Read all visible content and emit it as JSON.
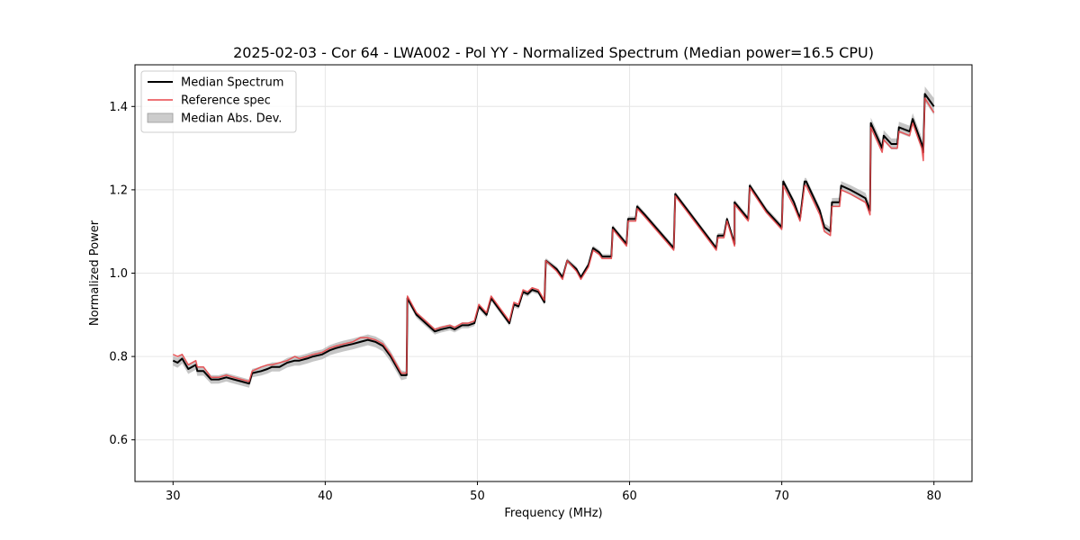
{
  "chart_data": {
    "type": "line",
    "title": "2025-02-03 - Cor 64 - LWA002 - Pol YY - Normalized Spectrum (Median power=16.5 CPU)",
    "xlabel": "Frequency (MHz)",
    "ylabel": "Normalized Power",
    "xlim": [
      27.5,
      82.5
    ],
    "ylim": [
      0.5,
      1.5
    ],
    "xticks": [
      30,
      40,
      50,
      60,
      70,
      80
    ],
    "xtick_labels": [
      "30",
      "40",
      "50",
      "60",
      "70",
      "80"
    ],
    "yticks": [
      0.6,
      0.8,
      1.0,
      1.2,
      1.4
    ],
    "ytick_labels": [
      "0.6",
      "0.8",
      "1.0",
      "1.2",
      "1.4"
    ],
    "grid": true,
    "legend_position": "top-left",
    "legend": [
      "Median Spectrum",
      "Reference spec",
      "Median Abs. Dev."
    ],
    "colors": {
      "median": "#000000",
      "reference": "#e8474a",
      "mad": "#b3b3b3"
    },
    "series": [
      {
        "name": "Median Spectrum",
        "x": [
          30.0,
          30.3,
          30.6,
          31.0,
          31.5,
          31.6,
          32.0,
          32.5,
          33.0,
          33.5,
          34.0,
          34.5,
          35.0,
          35.2,
          35.8,
          36.2,
          36.5,
          37.0,
          37.5,
          38.0,
          38.3,
          38.8,
          39.2,
          39.8,
          40.3,
          40.7,
          41.2,
          41.8,
          42.3,
          42.8,
          43.3,
          43.8,
          44.3,
          45.0,
          45.35,
          45.4,
          46.0,
          46.6,
          47.2,
          47.6,
          48.2,
          48.5,
          49.0,
          49.4,
          49.8,
          50.1,
          50.6,
          50.9,
          51.3,
          51.7,
          52.1,
          52.4,
          52.7,
          53.0,
          53.3,
          53.6,
          54.0,
          54.4,
          54.5,
          55.2,
          55.6,
          55.9,
          56.5,
          56.8,
          57.3,
          57.6,
          58.0,
          58.2,
          58.8,
          58.9,
          59.8,
          59.9,
          60.4,
          60.5,
          61.0,
          62.9,
          63.0,
          65.7,
          65.8,
          66.2,
          66.4,
          66.9,
          66.9,
          67.8,
          67.9,
          69.0,
          69.5,
          70.0,
          70.1,
          70.8,
          71.2,
          71.5,
          71.6,
          72.5,
          72.8,
          73.2,
          73.3,
          73.8,
          73.9,
          74.5,
          75.0,
          75.5,
          75.8,
          75.85,
          76.6,
          76.7,
          77.2,
          77.6,
          77.7,
          78.4,
          78.6,
          79.2,
          79.3,
          79.4,
          80.0
        ],
        "values": [
          0.79,
          0.785,
          0.795,
          0.77,
          0.78,
          0.765,
          0.765,
          0.745,
          0.745,
          0.75,
          0.745,
          0.74,
          0.735,
          0.76,
          0.765,
          0.77,
          0.775,
          0.775,
          0.785,
          0.79,
          0.79,
          0.795,
          0.8,
          0.805,
          0.815,
          0.82,
          0.825,
          0.83,
          0.835,
          0.84,
          0.835,
          0.825,
          0.8,
          0.755,
          0.755,
          0.94,
          0.9,
          0.88,
          0.86,
          0.865,
          0.87,
          0.865,
          0.875,
          0.875,
          0.88,
          0.92,
          0.9,
          0.94,
          0.92,
          0.9,
          0.88,
          0.925,
          0.92,
          0.955,
          0.95,
          0.96,
          0.955,
          0.93,
          1.03,
          1.01,
          0.99,
          1.03,
          1.01,
          0.99,
          1.02,
          1.06,
          1.05,
          1.04,
          1.04,
          1.11,
          1.07,
          1.13,
          1.13,
          1.16,
          1.14,
          1.06,
          1.19,
          1.06,
          1.09,
          1.09,
          1.13,
          1.07,
          1.17,
          1.13,
          1.21,
          1.15,
          1.13,
          1.11,
          1.22,
          1.17,
          1.13,
          1.22,
          1.22,
          1.15,
          1.11,
          1.1,
          1.17,
          1.17,
          1.21,
          1.2,
          1.19,
          1.18,
          1.15,
          1.36,
          1.3,
          1.33,
          1.31,
          1.31,
          1.35,
          1.34,
          1.37,
          1.31,
          1.29,
          1.43,
          1.4
        ]
      },
      {
        "name": "Reference spec",
        "x": [
          30.0,
          30.3,
          30.6,
          31.0,
          31.5,
          31.6,
          32.0,
          32.5,
          33.0,
          33.5,
          34.0,
          34.5,
          35.0,
          35.2,
          35.8,
          36.2,
          36.5,
          37.0,
          37.5,
          38.0,
          38.3,
          38.8,
          39.2,
          39.8,
          40.3,
          40.7,
          41.2,
          41.8,
          42.3,
          42.8,
          43.3,
          43.8,
          44.3,
          45.0,
          45.35,
          45.4,
          46.0,
          46.6,
          47.2,
          47.6,
          48.2,
          48.5,
          49.0,
          49.4,
          49.8,
          50.1,
          50.6,
          50.9,
          51.3,
          51.7,
          52.1,
          52.4,
          52.7,
          53.0,
          53.3,
          53.6,
          54.0,
          54.4,
          54.5,
          55.2,
          55.6,
          55.9,
          56.5,
          56.8,
          57.3,
          57.6,
          58.0,
          58.2,
          58.8,
          58.9,
          59.8,
          59.9,
          60.4,
          60.5,
          61.0,
          62.9,
          63.0,
          65.7,
          65.8,
          66.2,
          66.4,
          66.9,
          66.9,
          67.8,
          67.9,
          69.0,
          69.5,
          70.0,
          70.1,
          70.8,
          71.2,
          71.5,
          71.6,
          72.5,
          72.8,
          73.2,
          73.3,
          73.8,
          73.9,
          74.5,
          75.0,
          75.5,
          75.8,
          75.85,
          76.6,
          76.7,
          77.2,
          77.6,
          77.7,
          78.4,
          78.6,
          79.2,
          79.3,
          79.4,
          80.0
        ],
        "values": [
          0.805,
          0.8,
          0.805,
          0.78,
          0.79,
          0.775,
          0.775,
          0.75,
          0.75,
          0.755,
          0.75,
          0.745,
          0.74,
          0.765,
          0.775,
          0.78,
          0.78,
          0.785,
          0.79,
          0.8,
          0.795,
          0.8,
          0.805,
          0.81,
          0.82,
          0.825,
          0.83,
          0.835,
          0.845,
          0.845,
          0.84,
          0.83,
          0.805,
          0.76,
          0.76,
          0.945,
          0.905,
          0.885,
          0.865,
          0.87,
          0.875,
          0.87,
          0.88,
          0.88,
          0.885,
          0.925,
          0.905,
          0.945,
          0.925,
          0.905,
          0.885,
          0.93,
          0.925,
          0.96,
          0.955,
          0.965,
          0.96,
          0.935,
          1.03,
          1.005,
          0.985,
          1.03,
          1.005,
          0.985,
          1.015,
          1.055,
          1.045,
          1.035,
          1.035,
          1.105,
          1.065,
          1.125,
          1.125,
          1.155,
          1.135,
          1.055,
          1.185,
          1.055,
          1.085,
          1.085,
          1.125,
          1.065,
          1.165,
          1.125,
          1.205,
          1.145,
          1.125,
          1.105,
          1.21,
          1.16,
          1.125,
          1.21,
          1.21,
          1.14,
          1.1,
          1.09,
          1.16,
          1.16,
          1.2,
          1.19,
          1.18,
          1.17,
          1.14,
          1.35,
          1.29,
          1.32,
          1.3,
          1.3,
          1.34,
          1.33,
          1.36,
          1.3,
          1.27,
          1.42,
          1.385
        ]
      },
      {
        "name": "Median Abs. Dev.",
        "x": [
          30.0,
          31.0,
          32.0,
          33.0,
          34.0,
          35.0,
          36.0,
          37.0,
          38.0,
          39.0,
          40.0,
          41.0,
          42.0,
          43.0,
          44.0,
          45.0,
          45.4,
          50.0,
          55.0,
          60.0,
          65.0,
          70.0,
          72.0,
          75.0,
          75.8,
          77.0,
          79.0,
          79.4,
          80.0
        ],
        "values": [
          0.012,
          0.012,
          0.011,
          0.01,
          0.01,
          0.01,
          0.011,
          0.011,
          0.012,
          0.012,
          0.012,
          0.013,
          0.013,
          0.013,
          0.013,
          0.012,
          0.008,
          0.007,
          0.006,
          0.006,
          0.006,
          0.007,
          0.009,
          0.012,
          0.013,
          0.013,
          0.014,
          0.018,
          0.02
        ]
      }
    ]
  }
}
